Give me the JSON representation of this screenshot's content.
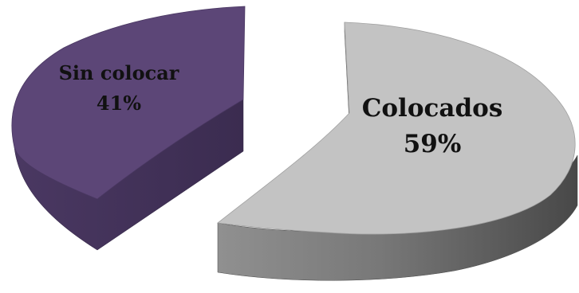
{
  "chart_data": {
    "type": "pie",
    "style": "3d-exploded",
    "title": "",
    "legend": "none",
    "slices": [
      {
        "label": "Sin colocar",
        "percent_label": "41%",
        "value": 41,
        "color": "#5c4677"
      },
      {
        "label": "Colocados",
        "percent_label": "59%",
        "value": 59,
        "color": "#c3c3c3"
      }
    ]
  }
}
